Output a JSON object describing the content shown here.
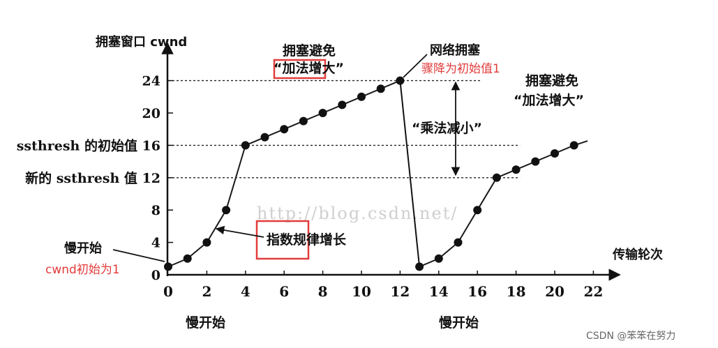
{
  "chart_data": {
    "type": "line",
    "title": "",
    "ylabel": "拥塞窗口 cwnd",
    "xlabel": "传输轮次",
    "xlim": [
      0,
      22
    ],
    "ylim": [
      0,
      24
    ],
    "x_ticks": [
      0,
      2,
      4,
      6,
      8,
      10,
      12,
      14,
      16,
      18,
      20,
      22
    ],
    "y_ticks": [
      0,
      4,
      8,
      12,
      16,
      20,
      24
    ],
    "y_tick_labels": {
      "0": "0",
      "4": "4",
      "8": "8",
      "12": "新的 ssthresh 值 12",
      "16": "ssthresh 的初始值 16",
      "20": "20",
      "24": "24"
    },
    "reference_lines": [
      12,
      16,
      24
    ],
    "series": [
      {
        "x": [
          0,
          1,
          2,
          3,
          4,
          5,
          6,
          7,
          8,
          9,
          10,
          11,
          12
        ],
        "y": [
          1,
          2,
          4,
          8,
          16,
          17,
          18,
          19,
          20,
          21,
          22,
          23,
          24
        ]
      },
      {
        "x": [
          13,
          14,
          15,
          16,
          17,
          18,
          19,
          20,
          21
        ],
        "y": [
          1,
          2,
          4,
          8,
          12,
          13,
          14,
          15,
          16
        ]
      }
    ],
    "annotations": {
      "slow_start_left": "慢开始",
      "cwnd_initial": "cwnd初始为1",
      "exponential": "指数规律增长",
      "congestion_avoid_1a": "拥塞避免",
      "congestion_avoid_1b": "“加法增大”",
      "congestion_avoid_2a": "拥塞避免",
      "congestion_avoid_2b": "“加法增大”",
      "network_congestion": "网络拥塞",
      "drop_to_initial": "骤降为初始值1",
      "multiplicative_decrease": "“乘法减小”",
      "slow_start_bottom_1": "慢开始",
      "slow_start_bottom_2": "慢开始",
      "watermark": "http://blog.csdn.net/",
      "credit": "CSDN @笨笨在努力"
    },
    "colors": {
      "line": "#1a1a1a",
      "marker": "#111111",
      "highlight_box": "#e23b3b",
      "highlight_text": "#e23b3b",
      "watermark": "#cfcfcf"
    }
  }
}
